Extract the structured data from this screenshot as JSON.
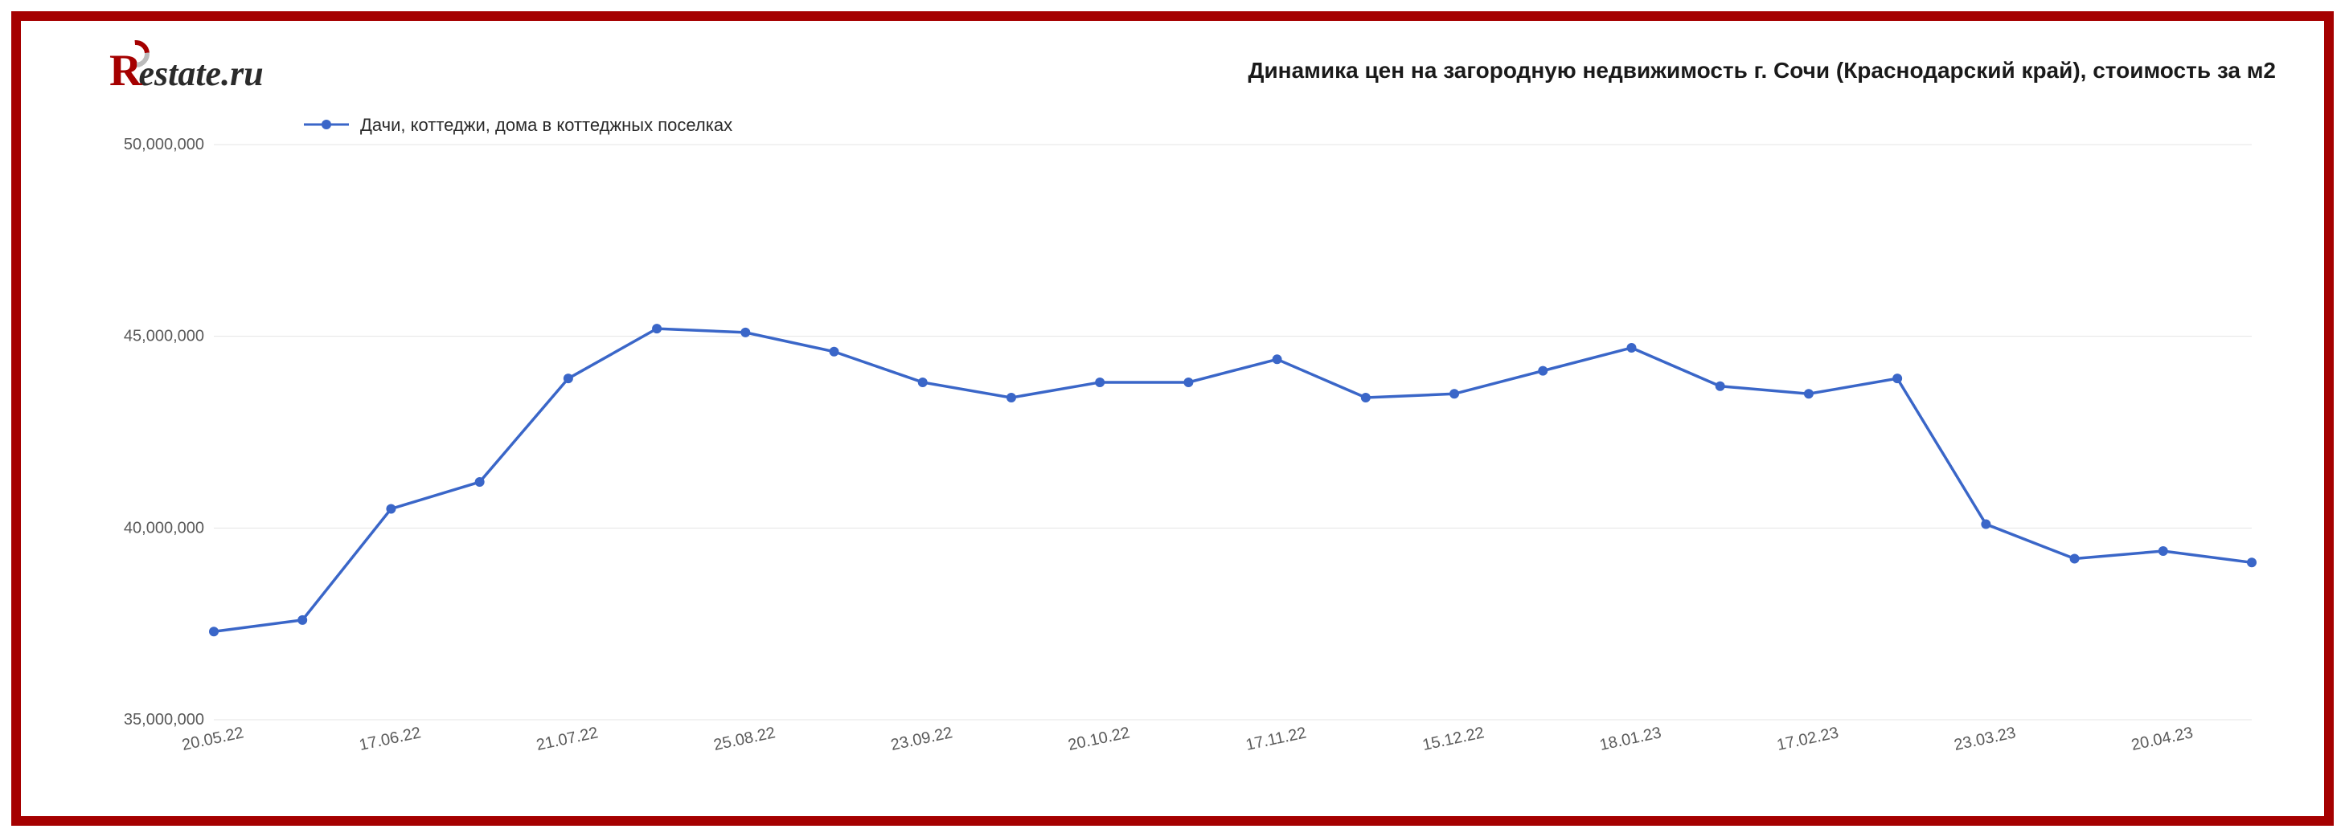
{
  "logo": {
    "text_rest": "estate.ru"
  },
  "title": "Динамика цен на загородную недвижимость г. Сочи (Краснодарский край), стоимость за м2",
  "chart": {
    "type": "line",
    "legend_label": "Дачи, коттеджи, дома в коттеджных поселках",
    "series_color": "#3a66c8",
    "marker_radius": 6,
    "line_width": 3.5,
    "background_color": "#ffffff",
    "grid_color": "#e5e5e5",
    "axis_text_color": "#5a5a5a",
    "axis_fontsize": 20,
    "legend_fontsize": 22,
    "ylim": [
      35000000,
      50000000
    ],
    "yticks": [
      35000000,
      40000000,
      45000000,
      50000000
    ],
    "ytick_labels": [
      "35,000,000",
      "40,000,000",
      "45,000,000",
      "50,000,000"
    ],
    "x_labels_shown": [
      "20.05.22",
      "17.06.22",
      "21.07.22",
      "25.08.22",
      "23.09.22",
      "20.10.22",
      "17.11.22",
      "15.12.22",
      "18.01.23",
      "17.02.23",
      "23.03.23",
      "20.04.23"
    ],
    "x_label_interval": 2,
    "x_label_rotation_deg": -12,
    "values": [
      37300000,
      37600000,
      40500000,
      41200000,
      43900000,
      45200000,
      45100000,
      44600000,
      43800000,
      43400000,
      43800000,
      43800000,
      44400000,
      43400000,
      43500000,
      44100000,
      44700000,
      43700000,
      43500000,
      43900000,
      40100000,
      39200000,
      39400000,
      39100000
    ]
  },
  "frame_border_color": "#a50000"
}
